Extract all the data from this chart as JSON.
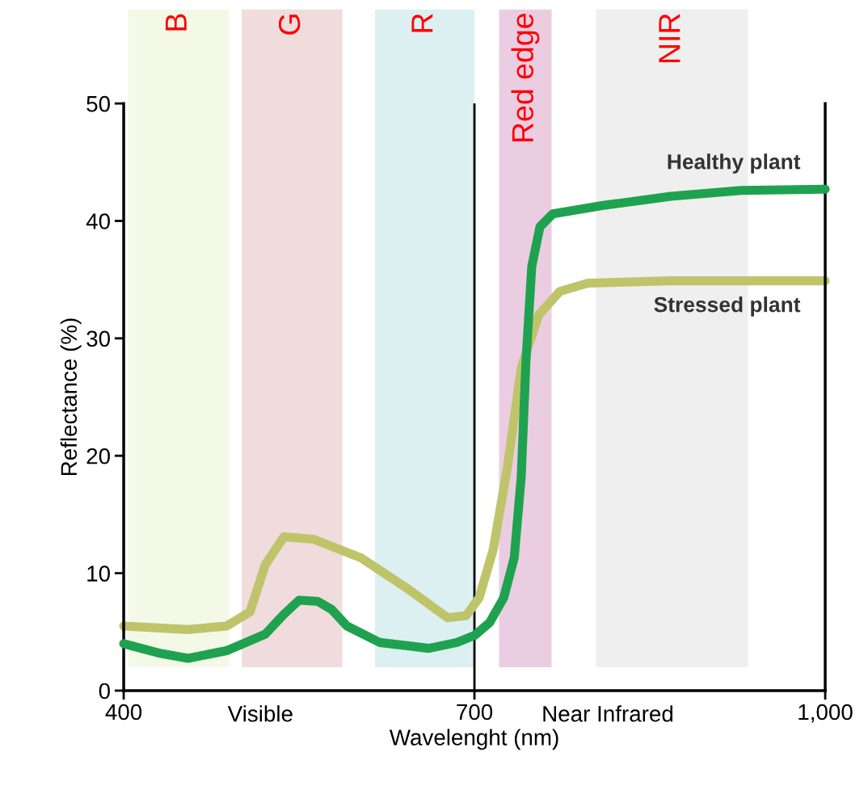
{
  "chart_data": {
    "type": "line",
    "xlabel": "Wavelenght (nm)",
    "ylabel": "Reflectance (%)",
    "xlim": [
      400,
      1000
    ],
    "xticks": [
      400,
      700,
      {
        "value": 1000,
        "label": "1,000"
      }
    ],
    "ylim": [
      0,
      50
    ],
    "yticks": [
      0,
      10,
      20,
      30,
      40,
      50
    ],
    "grid": false,
    "legend": false,
    "marker": "none",
    "line_style": "solid",
    "annotations": [
      "Visible",
      "Near Infrared"
    ],
    "bands": [
      {
        "axis": "x",
        "from": 404,
        "to": 490,
        "label": "B",
        "color": "#f3f9e6"
      },
      {
        "axis": "x",
        "from": 501,
        "to": 587,
        "label": "G",
        "color": "#f0dcdc"
      },
      {
        "axis": "x",
        "from": 615,
        "to": 700,
        "label": "R",
        "color": "#dcf0f2"
      },
      {
        "axis": "x",
        "from": 721,
        "to": 766,
        "label": "Red edge",
        "color": "#ebcde2"
      },
      {
        "axis": "x",
        "from": 804,
        "to": 934,
        "label": "NIR",
        "color": "#efefef"
      }
    ],
    "ref_lines": [
      {
        "axis": "x",
        "value": 700,
        "color": "#000000"
      }
    ],
    "series": [
      {
        "name": "Healthy plant",
        "color": "#1fa24f",
        "x": [
          400,
          430,
          455,
          488,
          521,
          537,
          550,
          566,
          578,
          591,
          619,
          661,
          685,
          700,
          713,
          725,
          734,
          740,
          744,
          749,
          756,
          767,
          809,
          868,
          928,
          1000
        ],
        "values": [
          4.0,
          3.2,
          2.75,
          3.4,
          4.8,
          6.5,
          7.7,
          7.6,
          6.9,
          5.5,
          4.1,
          3.6,
          4.1,
          4.7,
          5.8,
          7.9,
          11.3,
          18.2,
          27.9,
          36.1,
          39.5,
          40.6,
          41.3,
          42.1,
          42.6,
          42.7
        ]
      },
      {
        "name": "Stressed plant",
        "color": "#bfc46a",
        "x": [
          400,
          455,
          488,
          508,
          521,
          537,
          562,
          603,
          644,
          677,
          693,
          704,
          716,
          728,
          740,
          755,
          773,
          797,
          868,
          1000
        ],
        "values": [
          5.5,
          5.2,
          5.5,
          6.7,
          10.7,
          13.1,
          12.9,
          11.3,
          8.6,
          6.2,
          6.4,
          7.9,
          12.0,
          18.9,
          27.5,
          32.0,
          34.0,
          34.7,
          34.9,
          34.9
        ]
      }
    ]
  }
}
